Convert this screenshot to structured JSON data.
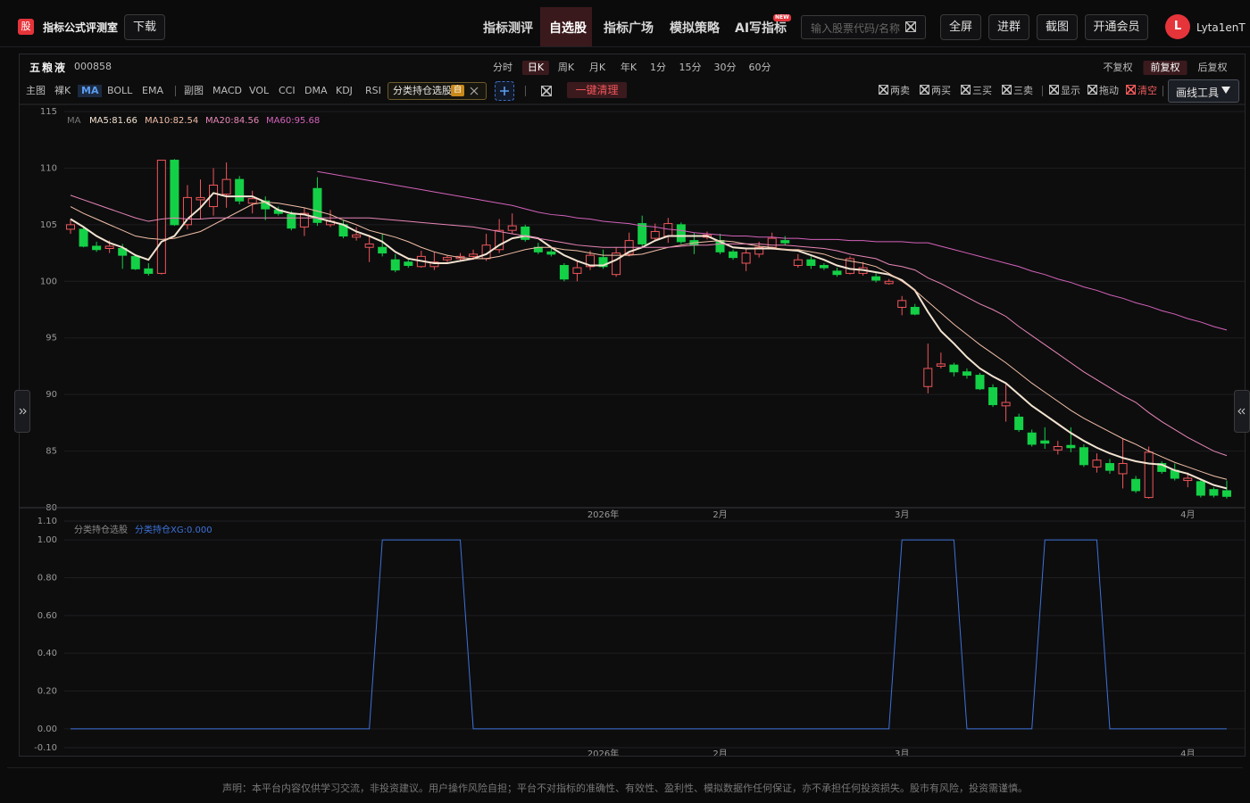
{
  "ui": {
    "header": {
      "logo": "股",
      "app_name": "指标公式评测室",
      "download": "下载",
      "nav": [
        "指标测评",
        "自选股",
        "指标广场",
        "模拟策略",
        "AI写指标"
      ],
      "new_badge": "NEW",
      "search_placeholder": "输入股票代码/名称",
      "buttons": [
        "全屏",
        "进群",
        "截图",
        "开通会员"
      ],
      "avatar": "L",
      "username": "Lyta1enT"
    },
    "stock": {
      "name": "五粮液",
      "code": "000858"
    },
    "periods": [
      "分时",
      "日K",
      "周K",
      "月K",
      "年K",
      "1分",
      "15分",
      "30分",
      "60分"
    ],
    "adjust": [
      "不复权",
      "前复权",
      "后复权"
    ],
    "main_tools": [
      "主图",
      "裸K",
      "MA",
      "BOLL",
      "EMA"
    ],
    "sub_tools": [
      "副图",
      "MACD",
      "VOL",
      "CCI",
      "DMA",
      "KDJ",
      "RSI"
    ],
    "formula_tag": {
      "name": "分类持仓选股",
      "badge": "自"
    },
    "clear_button": "一键清理",
    "signal_toggles": [
      "两卖",
      "两买",
      "三买",
      "三卖"
    ],
    "draw_toggles": [
      "显示",
      "拖动",
      "清空"
    ],
    "draw_tool": "画线工具",
    "footer": "声明：本平台内容仅供学习交流，非投资建议。用户操作风险自担；平台不对指标的准确性、有效性、盈利性、模拟数据作任何保证，亦不承担任何投资损失。股市有风险，投资需谨慎。"
  },
  "chart_data": [
    {
      "type": "candlestick",
      "categories": [
        null,
        null,
        null,
        null,
        null,
        null,
        null,
        null,
        null,
        null,
        null,
        null,
        null,
        null,
        null,
        null,
        null,
        null,
        null,
        null,
        null,
        null,
        null,
        null,
        null,
        null,
        null,
        null,
        null,
        null,
        null,
        null,
        null,
        null,
        null,
        null,
        null,
        null,
        null,
        null,
        null,
        "2026年",
        null,
        null,
        null,
        null,
        null,
        null,
        null,
        null,
        "2月",
        null,
        null,
        null,
        null,
        null,
        null,
        null,
        null,
        null,
        null,
        null,
        null,
        null,
        "3月",
        null,
        null,
        null,
        null,
        null,
        null,
        null,
        null,
        null,
        null,
        null,
        null,
        null,
        null,
        null,
        null,
        null,
        null,
        null,
        null,
        null,
        "4月",
        null,
        null,
        null
      ],
      "open": [
        104.6,
        104.6,
        103.1,
        102.9,
        102.9,
        102.2,
        101.1,
        100.7,
        110.7,
        105.0,
        107.2,
        106.6,
        107.7,
        109.0,
        106.9,
        107.1,
        106.3,
        105.9,
        104.8,
        108.2,
        105.0,
        105.0,
        103.9,
        103.0,
        103.0,
        101.9,
        101.7,
        101.3,
        101.3,
        101.9,
        102.0,
        102.2,
        102.0,
        102.8,
        104.5,
        104.8,
        103.0,
        102.6,
        101.4,
        100.7,
        101.3,
        102.1,
        100.6,
        102.4,
        105.1,
        103.8,
        104.0,
        105.0,
        103.6,
        103.9,
        103.6,
        102.6,
        101.6,
        102.4,
        103.0,
        103.6,
        101.4,
        101.9,
        101.4,
        100.9,
        100.7,
        100.7,
        100.4,
        99.8,
        97.7,
        97.7,
        90.7,
        92.5,
        92.6,
        92.0,
        91.7,
        90.6,
        89.0,
        88.0,
        86.6,
        85.9,
        85.1,
        85.5,
        85.3,
        83.6,
        83.9,
        83.0,
        82.5,
        80.9,
        83.9,
        83.3,
        82.4,
        82.3,
        81.6,
        81.5
      ],
      "high": [
        105.5,
        104.8,
        103.5,
        103.6,
        103.3,
        102.4,
        101.6,
        110.7,
        110.8,
        108.5,
        109.0,
        110.0,
        110.5,
        109.3,
        108.0,
        107.5,
        106.6,
        106.2,
        106.5,
        109.2,
        106.3,
        105.4,
        104.8,
        104.1,
        104.2,
        102.4,
        101.9,
        102.7,
        102.6,
        102.3,
        102.5,
        102.8,
        104.2,
        105.5,
        106.0,
        105.0,
        103.4,
        102.9,
        101.6,
        101.8,
        102.7,
        102.8,
        103.0,
        104.3,
        105.8,
        105.1,
        105.6,
        105.2,
        104.3,
        104.4,
        104.2,
        102.8,
        102.9,
        103.5,
        104.3,
        104.0,
        102.4,
        102.2,
        101.6,
        101.2,
        102.2,
        101.7,
        100.7,
        100.2,
        98.7,
        98.0,
        94.5,
        93.7,
        92.8,
        92.3,
        91.9,
        90.9,
        91.0,
        88.3,
        86.9,
        87.1,
        85.9,
        87.1,
        85.6,
        84.8,
        84.3,
        86.1,
        82.8,
        85.4,
        84.1,
        83.9,
        83.1,
        82.5,
        81.8,
        82.4
      ],
      "low": [
        104.2,
        103.0,
        102.6,
        102.5,
        101.1,
        101.0,
        100.5,
        100.6,
        104.9,
        104.6,
        105.5,
        105.8,
        106.5,
        106.8,
        106.0,
        105.4,
        105.8,
        104.5,
        104.0,
        104.9,
        104.8,
        103.8,
        103.6,
        101.7,
        102.2,
        100.8,
        101.2,
        101.2,
        101.0,
        101.7,
        101.8,
        101.9,
        101.8,
        102.5,
        104.2,
        103.5,
        102.4,
        102.2,
        100.0,
        100.0,
        101.0,
        101.1,
        100.4,
        102.2,
        103.1,
        103.6,
        103.4,
        103.3,
        102.4,
        103.7,
        102.4,
        101.9,
        100.9,
        102.1,
        102.8,
        103.2,
        101.2,
        101.1,
        101.0,
        100.4,
        100.6,
        100.5,
        99.9,
        99.7,
        97.0,
        97.0,
        90.1,
        92.3,
        91.6,
        91.4,
        90.4,
        88.9,
        87.6,
        86.7,
        85.4,
        85.2,
        84.7,
        84.9,
        83.6,
        83.1,
        83.0,
        81.7,
        81.3,
        80.8,
        83.0,
        82.4,
        81.8,
        80.9,
        80.9,
        80.8
      ],
      "close": [
        105.0,
        103.1,
        102.8,
        103.1,
        102.3,
        101.1,
        100.7,
        110.7,
        105.0,
        107.4,
        107.4,
        108.5,
        109.0,
        107.1,
        107.3,
        106.4,
        106.0,
        104.7,
        106.0,
        105.2,
        105.3,
        104.0,
        104.1,
        103.3,
        102.5,
        101.0,
        101.4,
        102.2,
        101.7,
        102.1,
        102.2,
        102.4,
        103.2,
        104.5,
        104.9,
        103.7,
        102.6,
        102.4,
        100.2,
        101.2,
        102.3,
        101.3,
        102.5,
        103.6,
        103.3,
        104.4,
        105.1,
        103.5,
        103.2,
        104.1,
        102.6,
        102.1,
        102.5,
        103.0,
        103.8,
        103.4,
        101.9,
        101.4,
        101.2,
        100.6,
        102.0,
        101.2,
        100.1,
        100.0,
        98.3,
        97.1,
        92.3,
        92.7,
        92.0,
        91.7,
        90.5,
        89.1,
        89.3,
        86.9,
        85.6,
        85.7,
        85.4,
        85.3,
        83.8,
        84.2,
        83.3,
        83.9,
        81.5,
        84.9,
        83.2,
        82.6,
        82.6,
        81.1,
        81.1,
        81.0
      ],
      "up_color": "#f0565b",
      "down_color": "#14d046",
      "ma_label": "MA",
      "series": [
        {
          "name": "MA5:81.66",
          "color": "#f3e3d0",
          "values": [
            105.5,
            104.8,
            104.0,
            103.4,
            103.0,
            102.3,
            101.9,
            103.5,
            104.0,
            105.5,
            106.5,
            107.8,
            107.5,
            107.5,
            107.5,
            107.0,
            106.3,
            106.0,
            105.9,
            105.6,
            105.3,
            105.0,
            104.4,
            104.0,
            103.5,
            102.6,
            102.0,
            101.8,
            101.6,
            101.6,
            101.8,
            102.0,
            102.4,
            103.2,
            103.8,
            104.0,
            103.8,
            103.0,
            102.3,
            101.8,
            101.4,
            101.4,
            101.9,
            102.6,
            103.0,
            103.6,
            104.0,
            104.0,
            104.0,
            104.0,
            103.5,
            103.0,
            102.9,
            102.9,
            102.9,
            102.8,
            102.7,
            102.3,
            101.9,
            101.4,
            101.1,
            101.0,
            100.8,
            100.6,
            100.1,
            99.2,
            97.3,
            95.6,
            94.5,
            93.3,
            92.3,
            91.6,
            91.0,
            90.0,
            89.0,
            88.2,
            87.4,
            86.6,
            85.9,
            85.3,
            84.8,
            84.4,
            84.1,
            83.9,
            83.8,
            83.3,
            83.0,
            82.5,
            82.0,
            81.7
          ]
        },
        {
          "name": "MA10:82.54",
          "color": "#f2bfa6",
          "values": [
            106.6,
            106.0,
            105.5,
            105.0,
            104.5,
            104.0,
            103.8,
            103.7,
            103.8,
            104.1,
            104.4,
            105.0,
            105.6,
            106.2,
            106.8,
            107.0,
            106.9,
            106.7,
            106.5,
            106.2,
            105.9,
            105.4,
            105.0,
            104.5,
            104.2,
            103.9,
            103.5,
            103.0,
            102.6,
            102.3,
            102.1,
            102.0,
            102.0,
            102.2,
            102.5,
            102.8,
            103.0,
            103.0,
            102.8,
            102.7,
            102.5,
            102.3,
            102.3,
            102.3,
            102.4,
            102.7,
            103.0,
            103.2,
            103.4,
            103.5,
            103.6,
            103.5,
            103.3,
            103.1,
            103.0,
            102.8,
            102.8,
            102.6,
            102.4,
            102.0,
            101.8,
            101.6,
            101.3,
            100.7,
            100.0,
            99.2,
            98.2,
            97.2,
            96.2,
            95.3,
            94.4,
            93.6,
            92.8,
            91.9,
            91.0,
            90.2,
            89.4,
            88.6,
            87.9,
            87.3,
            86.7,
            86.1,
            85.6,
            85.0,
            84.5,
            84.0,
            83.6,
            83.2,
            82.8,
            82.5
          ]
        },
        {
          "name": "MA20:84.56",
          "color": "#e886b6",
          "values": [
            107.6,
            107.2,
            106.8,
            106.4,
            106.0,
            105.6,
            105.3,
            105.5,
            105.6,
            105.5,
            105.5,
            105.6,
            105.6,
            105.6,
            105.6,
            105.6,
            105.6,
            105.6,
            105.6,
            105.6,
            105.6,
            105.6,
            105.6,
            105.6,
            105.5,
            105.4,
            105.3,
            105.2,
            105.1,
            105.0,
            104.9,
            104.8,
            104.6,
            104.4,
            104.2,
            104.0,
            103.8,
            103.6,
            103.4,
            103.2,
            103.1,
            103.0,
            103.0,
            103.0,
            103.0,
            103.0,
            103.0,
            103.1,
            103.2,
            103.2,
            103.3,
            103.3,
            103.3,
            103.3,
            103.2,
            103.2,
            103.1,
            103.0,
            102.9,
            102.7,
            102.4,
            102.2,
            102.0,
            101.5,
            101.3,
            101.0,
            100.3,
            99.8,
            99.2,
            98.6,
            98.0,
            97.5,
            96.9,
            96.0,
            95.2,
            94.4,
            93.6,
            92.8,
            92.0,
            91.3,
            90.6,
            89.9,
            89.3,
            88.4,
            87.6,
            86.9,
            86.2,
            85.6,
            85.0,
            84.6
          ]
        },
        {
          "name": "MA60:95.68",
          "color": "#d462b9",
          "values": [
            null,
            null,
            null,
            null,
            null,
            null,
            null,
            null,
            null,
            null,
            null,
            null,
            null,
            null,
            null,
            null,
            null,
            null,
            null,
            109.7,
            109.5,
            109.3,
            109.1,
            108.9,
            108.7,
            108.5,
            108.3,
            108.1,
            107.9,
            107.7,
            107.5,
            107.3,
            107.1,
            106.9,
            106.7,
            106.4,
            106.1,
            105.9,
            105.8,
            105.6,
            105.5,
            105.3,
            105.2,
            105.1,
            104.9,
            104.8,
            104.6,
            104.5,
            104.3,
            104.2,
            104.1,
            104.0,
            104.0,
            103.9,
            103.9,
            103.8,
            103.8,
            103.7,
            103.7,
            103.7,
            103.6,
            103.6,
            103.5,
            103.5,
            103.5,
            103.4,
            103.4,
            103.1,
            102.8,
            102.5,
            102.2,
            101.9,
            101.6,
            101.3,
            100.9,
            100.6,
            100.2,
            99.9,
            99.5,
            99.2,
            98.8,
            98.5,
            98.1,
            97.8,
            97.4,
            97.1,
            96.7,
            96.4,
            96.0,
            95.7
          ]
        }
      ],
      "ylim": [
        80,
        115
      ],
      "yticks": [
        80,
        85,
        90,
        95,
        100,
        105,
        110,
        115
      ],
      "grid": true
    },
    {
      "type": "line",
      "title": "分类持仓选股",
      "categories": [
        null,
        null,
        null,
        null,
        null,
        null,
        null,
        null,
        null,
        null,
        null,
        null,
        null,
        null,
        null,
        null,
        null,
        null,
        null,
        null,
        null,
        null,
        null,
        null,
        null,
        null,
        null,
        null,
        null,
        null,
        null,
        null,
        null,
        null,
        null,
        null,
        null,
        null,
        null,
        null,
        null,
        "2026年",
        null,
        null,
        null,
        null,
        null,
        null,
        null,
        null,
        "2月",
        null,
        null,
        null,
        null,
        null,
        null,
        null,
        null,
        null,
        null,
        null,
        null,
        null,
        "3月",
        null,
        null,
        null,
        null,
        null,
        null,
        null,
        null,
        null,
        null,
        null,
        null,
        null,
        null,
        null,
        null,
        null,
        null,
        null,
        null,
        null,
        "4月",
        null,
        null,
        null
      ],
      "series": [
        {
          "name": "分类持仓XG:0.000",
          "color": "#3d72d8",
          "values": [
            0,
            0,
            0,
            0,
            0,
            0,
            0,
            0,
            0,
            0,
            0,
            0,
            0,
            0,
            0,
            0,
            0,
            0,
            0,
            0,
            0,
            0,
            0,
            0,
            1,
            1,
            1,
            1,
            1,
            1,
            1,
            0,
            0,
            0,
            0,
            0,
            0,
            0,
            0,
            0,
            0,
            0,
            0,
            0,
            0,
            0,
            0,
            0,
            0,
            0,
            0,
            0,
            0,
            0,
            0,
            0,
            0,
            0,
            0,
            0,
            0,
            0,
            0,
            0,
            1,
            1,
            1,
            1,
            1,
            0,
            0,
            0,
            0,
            0,
            0,
            1,
            1,
            1,
            1,
            1,
            0,
            0,
            0,
            0,
            0,
            0,
            0,
            0,
            0,
            0
          ]
        }
      ],
      "ylim": [
        -0.1,
        1.1
      ],
      "yticks": [
        {
          "value": -0.1,
          "label": "-0.10"
        },
        {
          "value": 0,
          "label": "0.00"
        },
        {
          "value": 0.2,
          "label": "0.20"
        },
        {
          "value": 0.4,
          "label": "0.40"
        },
        {
          "value": 0.6,
          "label": "0.60"
        },
        {
          "value": 0.8,
          "label": "0.80"
        },
        {
          "value": 1,
          "label": "1.00"
        },
        {
          "value": 1.1,
          "label": "1.10"
        }
      ],
      "grid": true
    }
  ]
}
